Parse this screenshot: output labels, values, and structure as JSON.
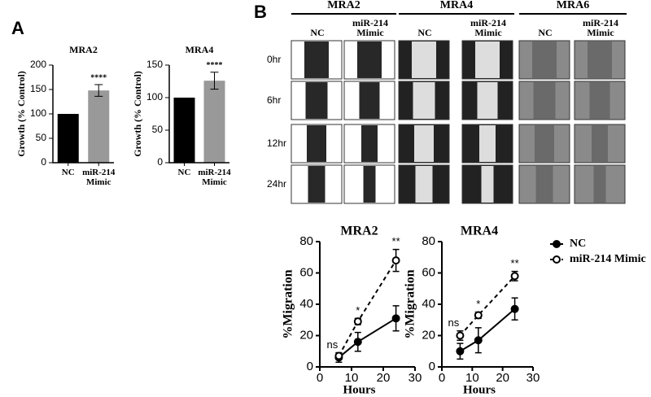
{
  "panels": {
    "a": "A",
    "b": "B"
  },
  "image_grid": {
    "columns": [
      "MRA2",
      "MRA4",
      "MRA6"
    ],
    "conditions": [
      "NC",
      "miR-214 Mimic"
    ],
    "timepoints": [
      "0hr",
      "6hr",
      "12hr",
      "24hr"
    ]
  },
  "chart_data": [
    {
      "type": "bar",
      "title": "MRA2",
      "y_label": "Growth (% Control)",
      "categories": [
        "NC",
        "miR-214 Mimic"
      ],
      "values": [
        100,
        148
      ],
      "errors": [
        null,
        12
      ],
      "colors": [
        "#000000",
        "#999999"
      ],
      "significance": [
        null,
        "****"
      ],
      "ylim": [
        0,
        200
      ],
      "yticks": [
        0,
        50,
        100,
        150,
        200
      ]
    },
    {
      "type": "bar",
      "title": "MRA4",
      "y_label": "Growth (% Control)",
      "categories": [
        "NC",
        "miR-214 Mimic"
      ],
      "values": [
        100,
        126
      ],
      "errors": [
        null,
        13
      ],
      "colors": [
        "#000000",
        "#999999"
      ],
      "significance": [
        null,
        "****"
      ],
      "ylim": [
        0,
        150
      ],
      "yticks": [
        0,
        50,
        100,
        150
      ]
    },
    {
      "type": "line",
      "title": "MRA2",
      "x_label": "Hours",
      "y_label": "%Migration",
      "x": [
        6,
        12,
        24
      ],
      "xlim": [
        0,
        30
      ],
      "xticks": [
        0,
        10,
        20,
        30
      ],
      "ylim": [
        0,
        80
      ],
      "yticks": [
        0,
        20,
        40,
        60,
        80
      ],
      "significance": [
        "ns",
        "*",
        "**"
      ],
      "series": [
        {
          "name": "NC",
          "color": "#000000",
          "style": "solid",
          "marker": "filled",
          "values": [
            6,
            16,
            31
          ],
          "errors": [
            3,
            6,
            8
          ]
        },
        {
          "name": "miR-214 Mimic",
          "color": "#000000",
          "style": "dashed",
          "marker": "open",
          "values": [
            7,
            29,
            68
          ],
          "errors": [
            2,
            2,
            7
          ]
        }
      ]
    },
    {
      "type": "line",
      "title": "MRA4",
      "x_label": "Hours",
      "y_label": "%Migration",
      "x": [
        6,
        12,
        24
      ],
      "xlim": [
        0,
        30
      ],
      "xticks": [
        0,
        10,
        20,
        30
      ],
      "ylim": [
        0,
        80
      ],
      "yticks": [
        0,
        20,
        40,
        60,
        80
      ],
      "significance": [
        "ns",
        "*",
        "**"
      ],
      "legend": "right",
      "series": [
        {
          "name": "NC",
          "color": "#000000",
          "style": "solid",
          "marker": "filled",
          "values": [
            10,
            17,
            37
          ],
          "errors": [
            5,
            8,
            7
          ]
        },
        {
          "name": "miR-214 Mimic",
          "color": "#000000",
          "style": "dashed",
          "marker": "open",
          "values": [
            20,
            33,
            58
          ],
          "errors": [
            3,
            2,
            3
          ]
        }
      ]
    }
  ]
}
